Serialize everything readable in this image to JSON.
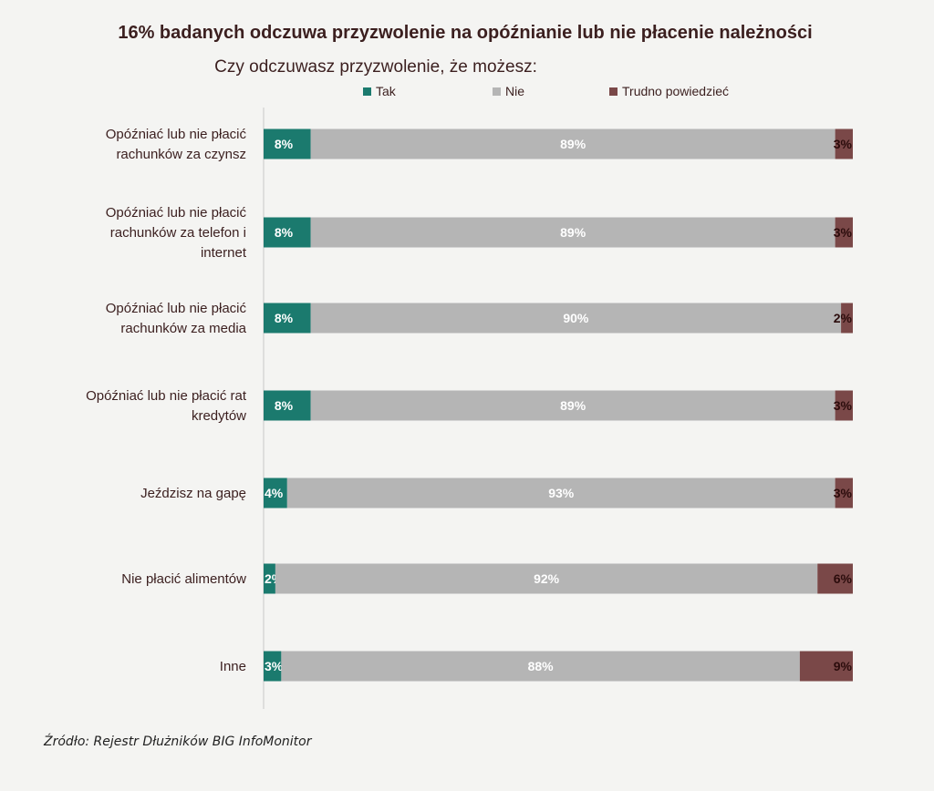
{
  "chart_data": {
    "type": "bar",
    "orientation": "horizontal",
    "stacked": true,
    "title": "16% badanych odczuwa przyzwolenie na opóźnianie lub nie płacenie należności",
    "subtitle": "Czy odczuwasz przyzwolenie, że możesz:",
    "legend_position": "top",
    "categories": [
      [
        "Opóźniać lub nie płacić",
        "rachunków za czynsz"
      ],
      [
        "Opóźniać lub nie płacić",
        "rachunków za telefon i",
        "internet"
      ],
      [
        "Opóźniać lub nie płacić",
        "rachunków za media"
      ],
      [
        "Opóźniać lub nie płacić rat",
        "kredytów"
      ],
      [
        "Jeździsz na gapę"
      ],
      [
        "Nie płacić alimentów"
      ],
      [
        "Inne"
      ]
    ],
    "series": [
      {
        "name": "Tak",
        "color": "#1b7a6e",
        "label_color": "#ffffff",
        "values": [
          8,
          8,
          8,
          8,
          4,
          2,
          3
        ]
      },
      {
        "name": "Nie",
        "color": "#b5b5b5",
        "label_color": "#ffffff",
        "values": [
          89,
          89,
          90,
          89,
          93,
          92,
          88
        ]
      },
      {
        "name": "Trudno powiedzieć",
        "color": "#7a4848",
        "label_color": "#2b0c0c",
        "values": [
          3,
          3,
          2,
          3,
          3,
          6,
          9
        ]
      }
    ],
    "value_suffix": "%",
    "xlim": [
      0,
      100
    ],
    "grid": false
  },
  "source": "Źródło: Rejestr Dłużników BIG InfoMonitor"
}
